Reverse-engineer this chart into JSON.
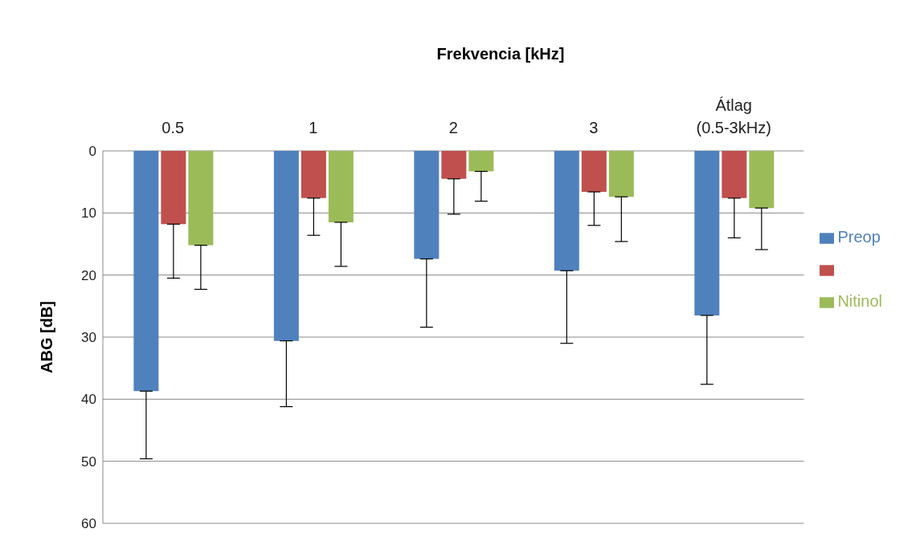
{
  "chart_data": {
    "type": "bar",
    "xlabel": "Frekvencia [kHz]",
    "ylabel": "ABG [dB]",
    "categories": [
      "0.5",
      "1",
      "2",
      "3",
      "Átlag (0.5-3kHz)"
    ],
    "series": [
      {
        "name": "Preop",
        "color": "#4f81bd",
        "values": [
          38.7,
          30.6,
          17.4,
          19.3,
          26.5
        ],
        "errors": [
          [
            38.7,
            49.6
          ],
          [
            30.6,
            41.2
          ],
          [
            17.4,
            28.4
          ],
          [
            19.3,
            31.0
          ],
          [
            26.5,
            37.6
          ]
        ]
      },
      {
        "color": "#c0504d",
        "values": [
          11.8,
          7.6,
          4.5,
          6.6,
          7.6
        ],
        "errors": [
          [
            11.8,
            20.5
          ],
          [
            7.6,
            13.6
          ],
          [
            4.5,
            10.2
          ],
          [
            6.6,
            12.0
          ],
          [
            7.6,
            14.0
          ]
        ]
      },
      {
        "name": "Nitinol",
        "color": "#9bbb59",
        "values": [
          15.2,
          11.5,
          3.3,
          7.4,
          9.2
        ],
        "errors": [
          [
            15.2,
            22.3
          ],
          [
            11.5,
            18.6
          ],
          [
            3.3,
            8.1
          ],
          [
            7.4,
            14.6
          ],
          [
            9.2,
            15.9
          ]
        ]
      }
    ],
    "ylim": [
      60,
      0
    ],
    "yticks": [
      0,
      10,
      20,
      30,
      40,
      50,
      60
    ],
    "grid": "y",
    "legend": "right"
  }
}
